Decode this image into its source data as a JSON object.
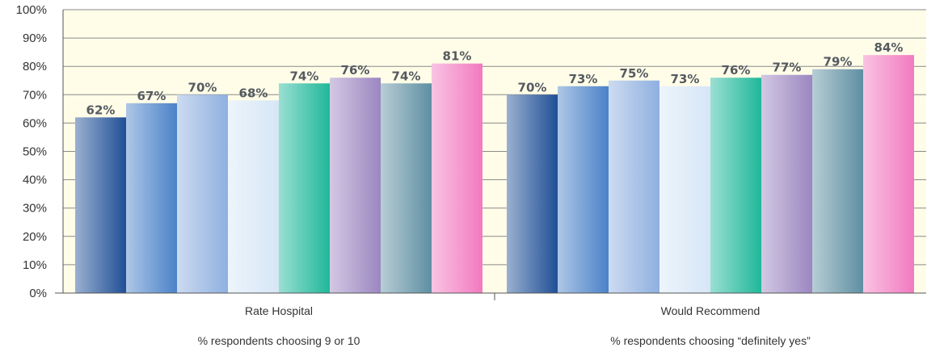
{
  "chart_data": {
    "type": "bar",
    "categories": [
      "Rate Hospital",
      "Would Recommend"
    ],
    "category_subtitles": [
      "% respondents choosing 9 or 10",
      "% respondents choosing “definitely yes”"
    ],
    "series": [
      {
        "values": [
          62,
          70
        ],
        "labels": [
          "62%",
          "70%"
        ],
        "color": "#1f4f96"
      },
      {
        "values": [
          67,
          73
        ],
        "labels": [
          "67%",
          "73%"
        ],
        "color": "#4b82c8"
      },
      {
        "values": [
          70,
          75
        ],
        "labels": [
          "70%",
          "75%"
        ],
        "color": "#8fb0e0"
      },
      {
        "values": [
          68,
          73
        ],
        "labels": [
          "68%",
          "73%"
        ],
        "color": "#d7e6f7"
      },
      {
        "values": [
          74,
          76
        ],
        "labels": [
          "74%",
          "76%"
        ],
        "color": "#1fb89a"
      },
      {
        "values": [
          76,
          77
        ],
        "labels": [
          "76%",
          "77%"
        ],
        "color": "#9c86c0"
      },
      {
        "values": [
          74,
          79
        ],
        "labels": [
          "74%",
          "79%"
        ],
        "color": "#5f8fa2"
      },
      {
        "values": [
          81,
          84
        ],
        "labels": [
          "81%",
          "84%"
        ],
        "color": "#f27ac0"
      }
    ],
    "yticks": [
      "0%",
      "10%",
      "20%",
      "30%",
      "40%",
      "50%",
      "60%",
      "70%",
      "80%",
      "90%",
      "100%"
    ],
    "ylim": [
      0,
      100
    ],
    "grid": true,
    "plot_background": "#fffde8"
  }
}
